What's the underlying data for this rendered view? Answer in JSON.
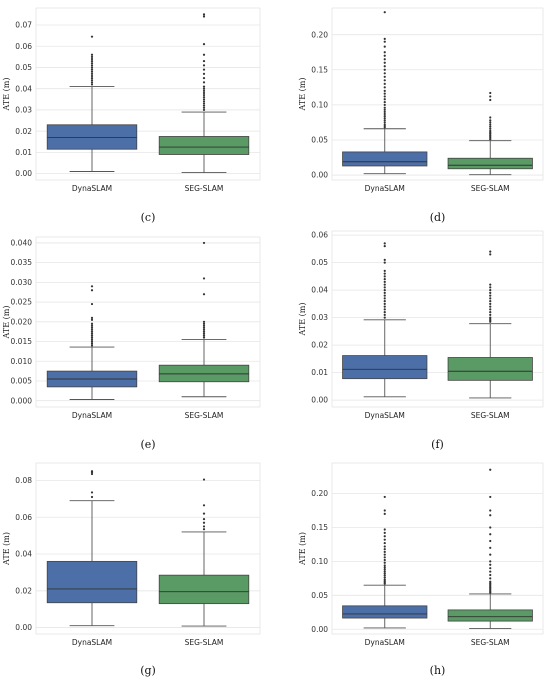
{
  "colors": {
    "DynaSLAM": "#4c6fa8",
    "SEG-SLAM": "#5a9a65",
    "grid": "#e6e6e6",
    "whisker": "#555555",
    "outlier": "#333333"
  },
  "chart_data": [
    {
      "type": "boxplot",
      "label": "(c)",
      "ylabel": "ATE (m)",
      "grid": true,
      "ylim": [
        -0.003,
        0.078
      ],
      "yticks": [
        0.0,
        0.01,
        0.02,
        0.03,
        0.04,
        0.05,
        0.06,
        0.07
      ],
      "ytick_labels": [
        "0.00",
        "0.01",
        "0.02",
        "0.03",
        "0.04",
        "0.05",
        "0.06",
        "0.07"
      ],
      "categories": [
        "DynaSLAM",
        "SEG-SLAM"
      ],
      "series": [
        {
          "name": "DynaSLAM",
          "min": 0.001,
          "q1": 0.0115,
          "median": 0.017,
          "q3": 0.023,
          "max": 0.041,
          "outliers": [
            0.042,
            0.043,
            0.044,
            0.045,
            0.046,
            0.047,
            0.048,
            0.049,
            0.05,
            0.051,
            0.052,
            0.053,
            0.054,
            0.055,
            0.056,
            0.0645
          ]
        },
        {
          "name": "SEG-SLAM",
          "min": 0.0005,
          "q1": 0.009,
          "median": 0.0125,
          "q3": 0.0175,
          "max": 0.029,
          "outliers": [
            0.03,
            0.031,
            0.032,
            0.033,
            0.034,
            0.035,
            0.036,
            0.037,
            0.038,
            0.039,
            0.04,
            0.041,
            0.043,
            0.045,
            0.047,
            0.049,
            0.051,
            0.053,
            0.056,
            0.061,
            0.074,
            0.075
          ]
        }
      ]
    },
    {
      "type": "boxplot",
      "label": "(d)",
      "ylabel": "ATE (m)",
      "grid": true,
      "ylim": [
        -0.007,
        0.238
      ],
      "yticks": [
        0.0,
        0.05,
        0.1,
        0.15,
        0.2
      ],
      "ytick_labels": [
        "0.00",
        "0.05",
        "0.10",
        "0.15",
        "0.20"
      ],
      "categories": [
        "DynaSLAM",
        "SEG-SLAM"
      ],
      "series": [
        {
          "name": "DynaSLAM",
          "min": 0.002,
          "q1": 0.013,
          "median": 0.019,
          "q3": 0.033,
          "max": 0.066,
          "outliers": [
            0.068,
            0.07,
            0.072,
            0.075,
            0.078,
            0.081,
            0.084,
            0.087,
            0.09,
            0.093,
            0.096,
            0.1,
            0.104,
            0.108,
            0.112,
            0.116,
            0.12,
            0.125,
            0.13,
            0.135,
            0.14,
            0.145,
            0.15,
            0.155,
            0.16,
            0.165,
            0.17,
            0.175,
            0.183,
            0.19,
            0.194,
            0.232
          ]
        },
        {
          "name": "SEG-SLAM",
          "min": 0.0005,
          "q1": 0.009,
          "median": 0.014,
          "q3": 0.024,
          "max": 0.049,
          "outliers": [
            0.051,
            0.053,
            0.055,
            0.057,
            0.059,
            0.061,
            0.063,
            0.066,
            0.069,
            0.072,
            0.075,
            0.078,
            0.082,
            0.107,
            0.112,
            0.117
          ]
        }
      ]
    },
    {
      "type": "boxplot",
      "label": "(e)",
      "ylabel": "ATE (m)",
      "grid": true,
      "ylim": [
        -0.0016,
        0.0415
      ],
      "yticks": [
        0.0,
        0.005,
        0.01,
        0.015,
        0.02,
        0.025,
        0.03,
        0.035,
        0.04
      ],
      "ytick_labels": [
        "0.000",
        "0.005",
        "0.010",
        "0.015",
        "0.020",
        "0.025",
        "0.030",
        "0.035",
        "0.040"
      ],
      "categories": [
        "DynaSLAM",
        "SEG-SLAM"
      ],
      "series": [
        {
          "name": "DynaSLAM",
          "min": 0.0003,
          "q1": 0.0035,
          "median": 0.0055,
          "q3": 0.0075,
          "max": 0.0136,
          "outliers": [
            0.014,
            0.0145,
            0.015,
            0.0155,
            0.016,
            0.0165,
            0.017,
            0.0175,
            0.018,
            0.0185,
            0.019,
            0.0195,
            0.0205,
            0.021,
            0.0245,
            0.028,
            0.029
          ]
        },
        {
          "name": "SEG-SLAM",
          "min": 0.001,
          "q1": 0.0048,
          "median": 0.0068,
          "q3": 0.009,
          "max": 0.0155,
          "outliers": [
            0.016,
            0.0165,
            0.017,
            0.0175,
            0.018,
            0.0185,
            0.019,
            0.0195,
            0.02,
            0.027,
            0.031,
            0.04
          ]
        }
      ]
    },
    {
      "type": "boxplot",
      "label": "(f)",
      "ylabel": "ATE (m)",
      "grid": true,
      "ylim": [
        -0.0025,
        0.0615
      ],
      "yticks": [
        0.0,
        0.01,
        0.02,
        0.03,
        0.04,
        0.05,
        0.06
      ],
      "ytick_labels": [
        "0.00",
        "0.01",
        "0.02",
        "0.03",
        "0.04",
        "0.05",
        "0.06"
      ],
      "categories": [
        "DynaSLAM",
        "SEG-SLAM"
      ],
      "series": [
        {
          "name": "DynaSLAM",
          "min": 0.0012,
          "q1": 0.0078,
          "median": 0.0112,
          "q3": 0.0162,
          "max": 0.0292,
          "outliers": [
            0.03,
            0.031,
            0.032,
            0.033,
            0.034,
            0.035,
            0.036,
            0.037,
            0.038,
            0.039,
            0.04,
            0.041,
            0.042,
            0.043,
            0.044,
            0.045,
            0.046,
            0.047,
            0.05,
            0.051,
            0.056,
            0.057
          ]
        },
        {
          "name": "SEG-SLAM",
          "min": 0.0008,
          "q1": 0.0072,
          "median": 0.0105,
          "q3": 0.0155,
          "max": 0.0278,
          "outliers": [
            0.0285,
            0.029,
            0.0295,
            0.03,
            0.031,
            0.032,
            0.033,
            0.034,
            0.035,
            0.036,
            0.037,
            0.038,
            0.039,
            0.04,
            0.041,
            0.042,
            0.053,
            0.054
          ]
        }
      ]
    },
    {
      "type": "boxplot",
      "label": "(g)",
      "ylabel": "ATE (m)",
      "grid": true,
      "ylim": [
        -0.0035,
        0.0895
      ],
      "yticks": [
        0.0,
        0.02,
        0.04,
        0.06,
        0.08
      ],
      "ytick_labels": [
        "0.00",
        "0.02",
        "0.04",
        "0.06",
        "0.08"
      ],
      "categories": [
        "DynaSLAM",
        "SEG-SLAM"
      ],
      "series": [
        {
          "name": "DynaSLAM",
          "min": 0.001,
          "q1": 0.0135,
          "median": 0.021,
          "q3": 0.036,
          "max": 0.069,
          "outliers": [
            0.071,
            0.0735,
            0.0835,
            0.0845,
            0.085
          ]
        },
        {
          "name": "SEG-SLAM",
          "min": 0.0008,
          "q1": 0.013,
          "median": 0.0195,
          "q3": 0.0285,
          "max": 0.052,
          "outliers": [
            0.0535,
            0.055,
            0.057,
            0.059,
            0.062,
            0.0665,
            0.0805
          ]
        }
      ]
    },
    {
      "type": "boxplot",
      "label": "(h)",
      "ylabel": "ATE (m)",
      "grid": true,
      "ylim": [
        -0.007,
        0.245
      ],
      "yticks": [
        0.0,
        0.05,
        0.1,
        0.15,
        0.2
      ],
      "ytick_labels": [
        "0.00",
        "0.05",
        "0.10",
        "0.15",
        "0.20"
      ],
      "categories": [
        "DynaSLAM",
        "SEG-SLAM"
      ],
      "series": [
        {
          "name": "DynaSLAM",
          "min": 0.002,
          "q1": 0.0165,
          "median": 0.0225,
          "q3": 0.0345,
          "max": 0.065,
          "outliers": [
            0.067,
            0.069,
            0.071,
            0.073,
            0.076,
            0.079,
            0.082,
            0.085,
            0.088,
            0.091,
            0.094,
            0.098,
            0.102,
            0.106,
            0.11,
            0.114,
            0.118,
            0.122,
            0.127,
            0.132,
            0.137,
            0.142,
            0.147,
            0.17,
            0.175,
            0.195
          ]
        },
        {
          "name": "SEG-SLAM",
          "min": 0.001,
          "q1": 0.012,
          "median": 0.0185,
          "q3": 0.0285,
          "max": 0.052,
          "outliers": [
            0.054,
            0.056,
            0.058,
            0.06,
            0.062,
            0.064,
            0.066,
            0.068,
            0.07,
            0.075,
            0.08,
            0.085,
            0.09,
            0.095,
            0.1,
            0.11,
            0.12,
            0.13,
            0.14,
            0.15,
            0.168,
            0.175,
            0.195,
            0.235
          ]
        }
      ]
    }
  ]
}
